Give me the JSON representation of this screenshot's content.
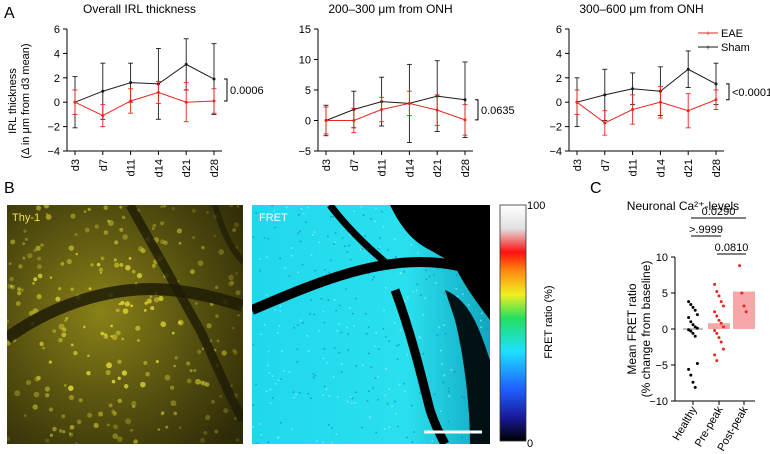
{
  "colors": {
    "eae": "#e8271e",
    "sham": "#1a1a1a",
    "bar_fill": "#f7a7a7",
    "thy1_text": "#f2e04a"
  },
  "panel_labels": {
    "a": "A",
    "b": "B",
    "c": "C"
  },
  "panel_a": {
    "ylabel_line1": "IRL thickness",
    "ylabel_line2": "(Δ in μm from d3 mean)",
    "legend": [
      "EAE",
      "Sham"
    ]
  },
  "chart_data": [
    {
      "type": "line",
      "title": "Overall IRL thickness",
      "x": [
        "d3",
        "d7",
        "d11",
        "d14",
        "d21",
        "d28"
      ],
      "ylim": [
        -4,
        6
      ],
      "yticks": [
        -4,
        -2,
        0,
        2,
        4,
        6
      ],
      "series": [
        {
          "name": "EAE",
          "values": [
            0,
            -1.1,
            0.1,
            0.8,
            0.0,
            0.1
          ],
          "err": [
            1.0,
            0.9,
            1.0,
            0.9,
            1.6,
            1.0
          ]
        },
        {
          "name": "Sham",
          "values": [
            0,
            0.9,
            1.6,
            1.5,
            3.1,
            1.9
          ],
          "err": [
            2.1,
            2.3,
            1.6,
            2.9,
            2.1,
            2.9
          ]
        }
      ],
      "pvalue": "0.0006"
    },
    {
      "type": "line",
      "title": "200–300 μm from ONH",
      "x": [
        "d3",
        "d7",
        "d11",
        "d14",
        "d21",
        "d28"
      ],
      "ylim": [
        -5,
        15
      ],
      "yticks": [
        -5,
        0,
        5,
        10,
        15
      ],
      "series": [
        {
          "name": "EAE",
          "values": [
            0,
            0.0,
            1.8,
            2.8,
            1.7,
            0.1
          ],
          "err": [
            2.2,
            2.0,
            2.0,
            2.0,
            2.5,
            2.5
          ]
        },
        {
          "name": "Sham",
          "values": [
            0,
            1.8,
            3.1,
            2.8,
            4.0,
            3.4
          ],
          "err": [
            2.5,
            3.0,
            4.0,
            6.4,
            5.8,
            6.2
          ]
        }
      ],
      "pvalue": "0.0635"
    },
    {
      "type": "line",
      "title": "300–600 μm from ONH",
      "x": [
        "d3",
        "d7",
        "d11",
        "d14",
        "d21",
        "d28"
      ],
      "ylim": [
        -4,
        6
      ],
      "yticks": [
        -4,
        -2,
        0,
        2,
        4,
        6
      ],
      "series": [
        {
          "name": "EAE",
          "values": [
            0,
            -1.7,
            -0.6,
            0.0,
            -0.7,
            0.2
          ],
          "err": [
            1.0,
            1.0,
            1.2,
            1.3,
            1.4,
            0.8
          ]
        },
        {
          "name": "Sham",
          "values": [
            0,
            0.6,
            1.1,
            0.9,
            2.7,
            1.5
          ],
          "err": [
            2.0,
            2.1,
            1.3,
            2.0,
            1.5,
            1.7
          ]
        }
      ],
      "pvalue": "<0.0001"
    },
    {
      "type": "bar",
      "title": "Neuronal Ca²⁺-levels",
      "ylabel_line1": "Mean FRET  ratio",
      "ylabel_line2": "(% change from baseline)",
      "categories": [
        "Healthy",
        "Pre-peak",
        "Post-peak"
      ],
      "values": [
        0.0,
        0.8,
        5.2
      ],
      "ylim": [
        -10,
        10
      ],
      "yticks": [
        -10,
        -5,
        0,
        5,
        10
      ],
      "points": [
        [
          3.8,
          3.4,
          3.0,
          2.6,
          2.0,
          1.6,
          1.0,
          0.6,
          0.3,
          0.1,
          -0.1,
          -0.3,
          -0.6,
          -1.0,
          -4.8,
          -5.6,
          -6.4,
          -7.4,
          -8.1
        ],
        [
          6.2,
          5.2,
          4.6,
          3.8,
          3.2,
          2.4,
          1.8,
          1.2,
          0.8,
          0.3,
          -0.2,
          -0.6,
          -1.2,
          -1.8,
          -2.8,
          -3.6,
          -4.4
        ],
        [
          8.8,
          5.0,
          3.2,
          2.4
        ]
      ],
      "comparisons": [
        {
          "from": 0,
          "to": 2,
          "label": "0.0290"
        },
        {
          "from": 0,
          "to": 1,
          "label": ">.9999"
        },
        {
          "from": 1,
          "to": 2,
          "label": "0.0810"
        }
      ]
    }
  ],
  "panel_b": {
    "thy1_label": "Thy-1",
    "fret_label": "FRET",
    "colorbar_label": "FRET ratio (%)",
    "colorbar_max": "100",
    "colorbar_min": "0"
  }
}
